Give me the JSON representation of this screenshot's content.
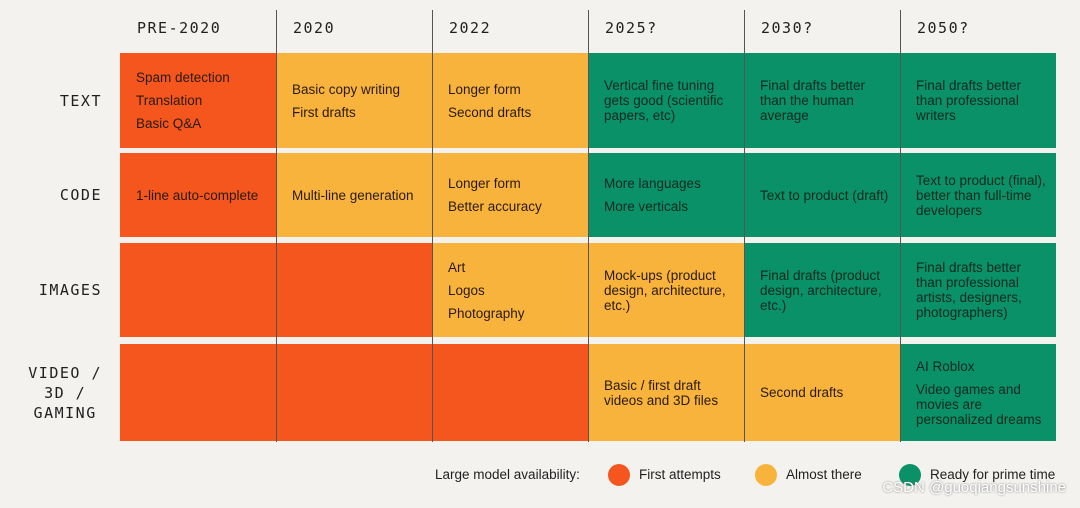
{
  "columns": [
    "PRE-2020",
    "2020",
    "2022",
    "2025?",
    "2030?",
    "2050?"
  ],
  "rows": [
    {
      "label": [
        "TEXT"
      ],
      "cells": [
        {
          "color": "#f4561d",
          "items": [
            "Spam detection",
            "Translation",
            "Basic Q&A"
          ]
        },
        {
          "color": "#f8b33c",
          "items": [
            "Basic copy writing",
            "First drafts"
          ]
        },
        {
          "color": "#f8b33c",
          "items": [
            "Longer form",
            "Second drafts"
          ]
        },
        {
          "color": "#0b9167",
          "items": [
            "Vertical fine tuning gets good (scientific papers, etc)"
          ]
        },
        {
          "color": "#0b9167",
          "items": [
            "Final drafts better than the human average"
          ]
        },
        {
          "color": "#0b9167",
          "items": [
            "Final drafts better than professional writers"
          ]
        }
      ]
    },
    {
      "label": [
        "CODE"
      ],
      "cells": [
        {
          "color": "#f4561d",
          "items": [
            "1-line auto-complete"
          ]
        },
        {
          "color": "#f8b33c",
          "items": [
            "Multi-line generation"
          ]
        },
        {
          "color": "#f8b33c",
          "items": [
            "Longer form",
            "Better accuracy"
          ]
        },
        {
          "color": "#0b9167",
          "items": [
            "More languages",
            "More verticals"
          ]
        },
        {
          "color": "#0b9167",
          "items": [
            "Text to product (draft)"
          ]
        },
        {
          "color": "#0b9167",
          "items": [
            "Text to product (final), better than full-time developers"
          ]
        }
      ]
    },
    {
      "label": [
        "IMAGES"
      ],
      "cells": [
        {
          "color": "#f4561d",
          "items": []
        },
        {
          "color": "#f4561d",
          "items": []
        },
        {
          "color": "#f8b33c",
          "items": [
            "Art",
            "Logos",
            "Photography"
          ]
        },
        {
          "color": "#f8b33c",
          "items": [
            "Mock-ups (product design, architecture, etc.)"
          ]
        },
        {
          "color": "#0b9167",
          "items": [
            "Final drafts (product design, architecture, etc.)"
          ]
        },
        {
          "color": "#0b9167",
          "items": [
            "Final drafts better than professional artists, designers, photographers)"
          ]
        }
      ]
    },
    {
      "label": [
        "VIDEO /",
        "3D /",
        "GAMING"
      ],
      "cells": [
        {
          "color": "#f4561d",
          "items": []
        },
        {
          "color": "#f4561d",
          "items": []
        },
        {
          "color": "#f4561d",
          "items": []
        },
        {
          "color": "#f8b33c",
          "items": [
            "Basic / first draft videos and 3D files"
          ]
        },
        {
          "color": "#f8b33c",
          "items": [
            "Second drafts"
          ]
        },
        {
          "color": "#0b9167",
          "items": [
            "AI Roblox",
            "Video games and movies are personalized dreams"
          ]
        }
      ]
    }
  ],
  "legend": {
    "title": "Large model availability:",
    "items": [
      {
        "label": "First attempts",
        "color": "#f4561d"
      },
      {
        "label": "Almost there",
        "color": "#f8b33c"
      },
      {
        "label": "Ready for prime time",
        "color": "#0b9167"
      }
    ]
  },
  "watermark": "CSDN @guoqiangsunshine"
}
